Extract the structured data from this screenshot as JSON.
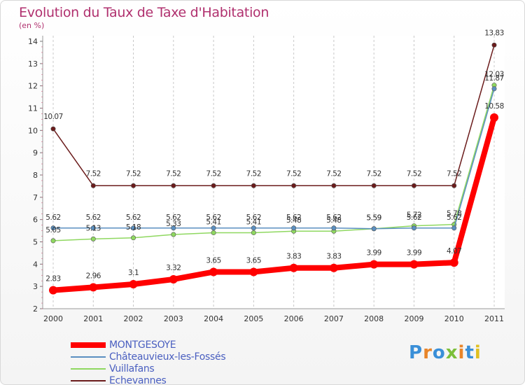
{
  "title": "Evolution du Taux de Taxe d'Habitation",
  "unit_label": "(en %)",
  "logo_text": "Proxiti",
  "logo_colors": [
    "#3a8fd8",
    "#e8852a",
    "#3a8fd8",
    "#7cbf3a",
    "#e8852a",
    "#3a8fd8",
    "#e0c020"
  ],
  "chart_data": {
    "type": "line",
    "title": "Evolution du Taux de Taxe d'Habitation",
    "ylabel": "(en %)",
    "xlabel": "",
    "x": [
      "2000",
      "2001",
      "2002",
      "2003",
      "2004",
      "2005",
      "2006",
      "2007",
      "2008",
      "2009",
      "2010",
      "2011"
    ],
    "ylim": [
      2,
      14
    ],
    "yticks": [
      "2",
      "3",
      "4",
      "5",
      "6",
      "7",
      "8",
      "9",
      "10",
      "11",
      "12",
      "13",
      "14"
    ],
    "grid": "vertical dashed",
    "legend_position": "bottom-left",
    "series": [
      {
        "name": "MONTGESOYE",
        "color": "#ff0000",
        "values": [
          2.83,
          2.96,
          3.1,
          3.32,
          3.65,
          3.65,
          3.83,
          3.83,
          3.99,
          3.99,
          4.07,
          10.58
        ],
        "labels": [
          "2.83",
          "2.96",
          "3.1",
          "3.32",
          "3.65",
          "3.65",
          "3.83",
          "3.83",
          "3.99",
          "3.99",
          "4.07",
          "10.58"
        ]
      },
      {
        "name": "Châteauvieux-les-Fossés",
        "color": "#5a8fc0",
        "values": [
          5.62,
          5.62,
          5.62,
          5.62,
          5.62,
          5.62,
          5.62,
          5.62,
          5.59,
          5.62,
          5.62,
          11.87
        ],
        "labels": [
          "5.62",
          "5.62",
          "5.62",
          "5.62",
          "5.62",
          "5.62",
          "5.62",
          "5.62",
          "5.59",
          "5.62",
          "5.62",
          "11.87"
        ]
      },
      {
        "name": "Vuillafans",
        "color": "#8fd860",
        "values": [
          5.05,
          5.13,
          5.18,
          5.33,
          5.41,
          5.41,
          5.48,
          5.48,
          5.59,
          5.72,
          5.78,
          12.03
        ],
        "labels": [
          "5.05",
          "5.13",
          "5.18",
          "5.33",
          "5.41",
          "5.41",
          "5.48",
          "5.48",
          "5.59",
          "5.72",
          "5.78",
          "12.03"
        ]
      },
      {
        "name": "Echevannes",
        "color": "#6b1c1c",
        "values": [
          10.07,
          7.52,
          7.52,
          7.52,
          7.52,
          7.52,
          7.52,
          7.52,
          7.52,
          7.52,
          7.52,
          13.83
        ],
        "labels": [
          "10.07",
          "7.52",
          "7.52",
          "7.52",
          "7.52",
          "7.52",
          "7.52",
          "7.52",
          "7.52",
          "7.52",
          "7.52",
          "13.83"
        ]
      }
    ]
  }
}
